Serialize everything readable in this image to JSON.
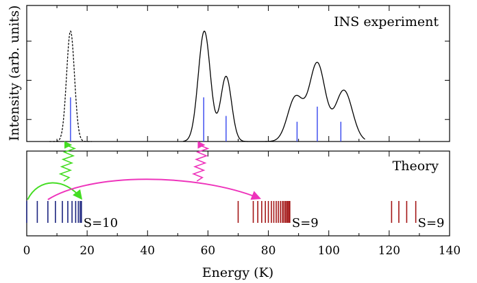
{
  "chart_data": [
    {
      "type": "line",
      "panel": "top",
      "title": "INS experiment",
      "ylabel": "Intensity (arb. units)",
      "xlim": [
        0,
        140
      ],
      "ylim": [
        0,
        1.0
      ],
      "y_tick_labels_shown": false,
      "series": [
        {
          "style": "dashed",
          "color": "#000000",
          "peaks": [
            {
              "center": 14.5,
              "height": 0.95,
              "sigma": 1.3
            }
          ]
        },
        {
          "style": "solid",
          "color": "#000000",
          "peaks": [
            {
              "center": 58.8,
              "height": 0.95,
              "sigma": 2.0
            },
            {
              "center": 66.0,
              "height": 0.56,
              "sigma": 1.8
            },
            {
              "center": 89.0,
              "height": 0.38,
              "sigma": 2.6
            },
            {
              "center": 96.2,
              "height": 0.67,
              "sigma": 2.6
            },
            {
              "center": 105.0,
              "height": 0.44,
              "sigma": 2.8
            }
          ]
        }
      ],
      "stick_color": "#3344ee",
      "sticks": [
        {
          "x": 14.5,
          "y": 0.38
        },
        {
          "x": 58.6,
          "y": 0.38
        },
        {
          "x": 66.0,
          "y": 0.22
        },
        {
          "x": 89.5,
          "y": 0.17
        },
        {
          "x": 96.2,
          "y": 0.3
        },
        {
          "x": 104.0,
          "y": 0.17
        }
      ],
      "arrow_targets": [
        {
          "x": 14.5,
          "color": "#44dd22"
        },
        {
          "x": 58.6,
          "color": "#ee33bb"
        }
      ]
    },
    {
      "type": "levels",
      "panel": "bottom",
      "title": "Theory",
      "xlabel": "Energy (K)",
      "xlim": [
        0,
        140
      ],
      "x_ticks": [
        0,
        20,
        40,
        60,
        80,
        100,
        120,
        140
      ],
      "x_tick_labels": [
        "0",
        "20",
        "40",
        "60",
        "80",
        "100",
        "120",
        "140"
      ],
      "groups": [
        {
          "label": "S=10",
          "color": "#1a237e",
          "levels": [
            0,
            3.5,
            7,
            9.5,
            11.8,
            13.6,
            15,
            16.2,
            17.1,
            17.7,
            18.1
          ]
        },
        {
          "label": "S=9",
          "color": "#a31515",
          "levels": [
            70,
            75,
            76.5,
            77.8,
            79,
            80,
            81,
            81.8,
            82.6,
            83.3,
            84,
            84.6,
            85.1,
            85.6,
            86,
            86.4,
            86.8,
            87.1
          ]
        },
        {
          "label": "S=9",
          "color": "#a31515",
          "levels": [
            120.8,
            123.2,
            125.8,
            128.8
          ]
        }
      ],
      "arrows": [
        {
          "from": 0.3,
          "to": 18.0,
          "color": "#44dd22"
        },
        {
          "from": 7.0,
          "to": 77.0,
          "color": "#ee33bb"
        }
      ]
    }
  ]
}
